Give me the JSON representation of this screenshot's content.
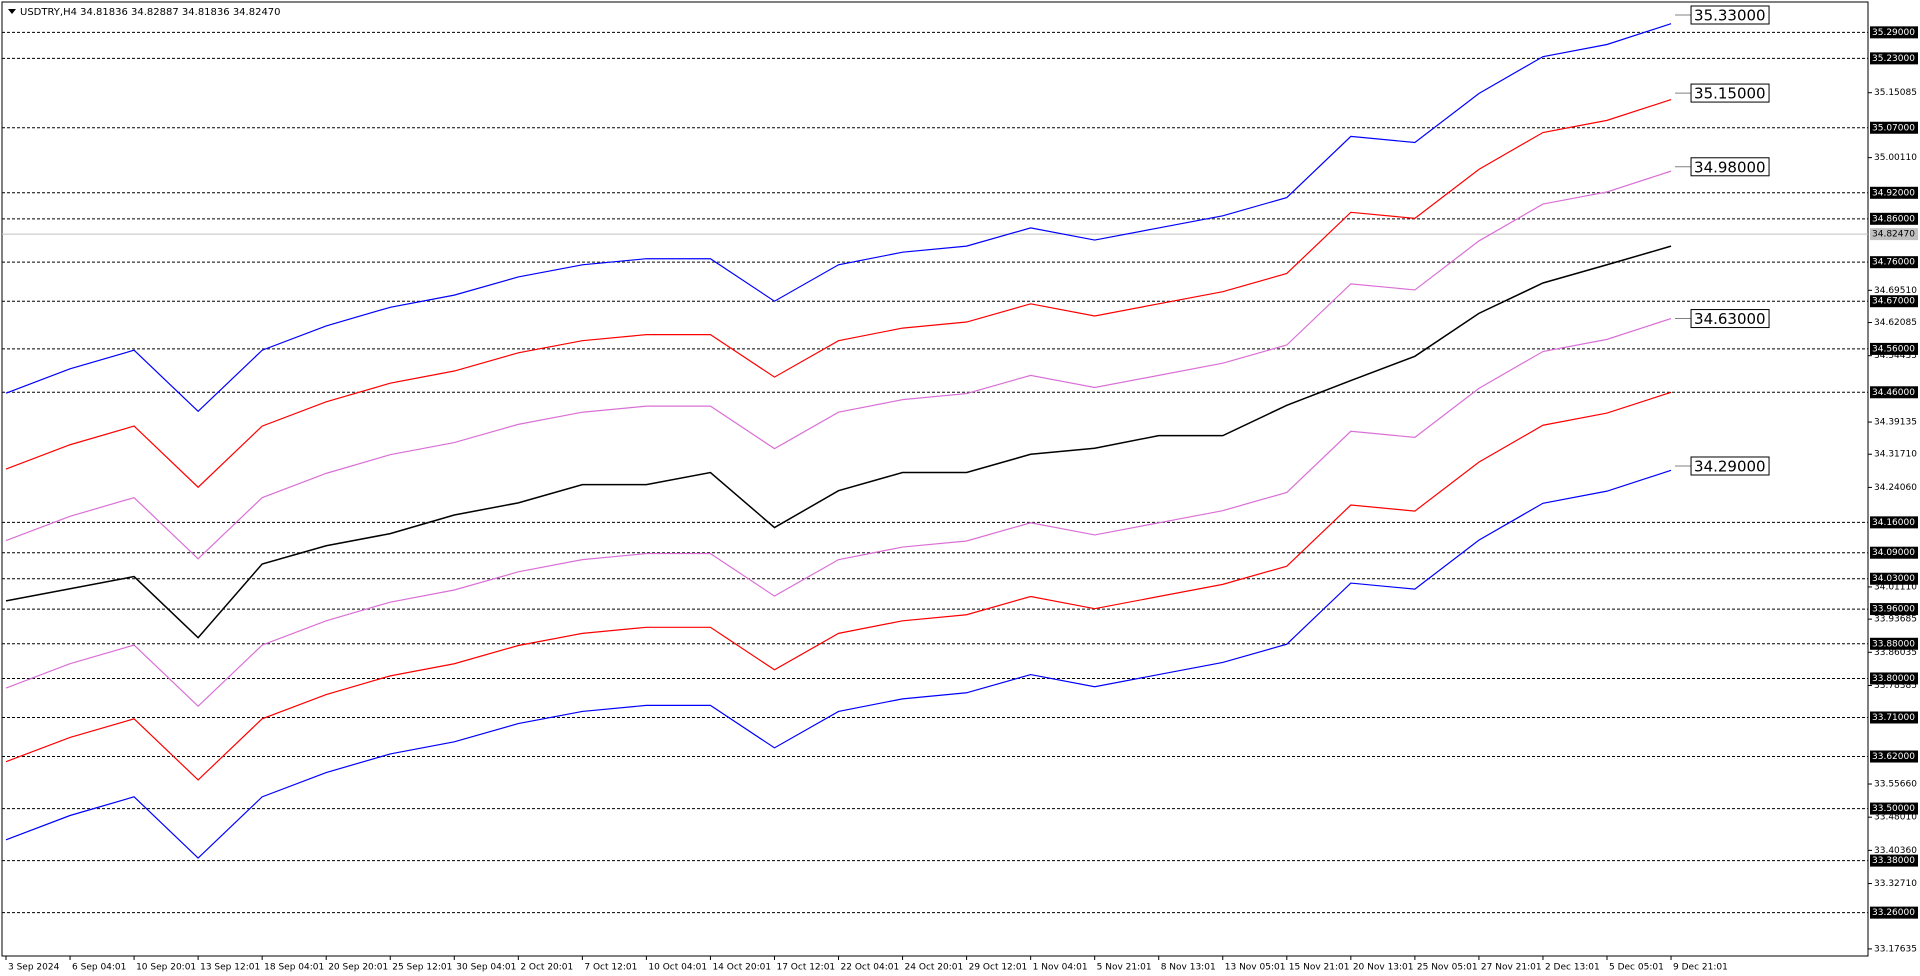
{
  "chart_data": {
    "type": "line",
    "title": "USDTRY,H4  34.81836 34.82887 34.81836 34.82470",
    "x": [
      "3 Sep 2024",
      "6 Sep 04:01",
      "10 Sep 20:01",
      "13 Sep 12:01",
      "18 Sep 04:01",
      "20 Sep 20:01",
      "25 Sep 12:01",
      "30 Sep 04:01",
      "2 Oct 20:01",
      "7 Oct 12:01",
      "10 Oct 04:01",
      "14 Oct 20:01",
      "17 Oct 12:01",
      "22 Oct 04:01",
      "24 Oct 20:01",
      "29 Oct 12:01",
      "1 Nov 04:01",
      "5 Nov 21:01",
      "8 Nov 13:01",
      "13 Nov 05:01",
      "15 Nov 21:01",
      "20 Nov 13:01",
      "25 Nov 05:01",
      "27 Nov 21:01",
      "2 Dec 13:01",
      "5 Dec 05:01",
      "9 Dec 21:01"
    ],
    "series": [
      {
        "color": "#000000",
        "values": [
          33.979,
          34.007,
          34.035,
          33.894,
          34.064,
          34.106,
          34.134,
          34.177,
          34.205,
          34.247,
          34.247,
          34.275,
          34.148,
          34.233,
          34.275,
          34.275,
          34.317,
          34.331,
          34.36,
          34.36,
          34.43,
          34.487,
          34.543,
          34.642,
          34.712,
          34.754,
          34.797
        ]
      },
      {
        "color": "#0000ff",
        "values": [
          34.458,
          34.514,
          34.557,
          34.416,
          34.557,
          34.613,
          34.656,
          34.684,
          34.726,
          34.754,
          34.768,
          34.768,
          34.67,
          34.754,
          34.783,
          34.797,
          34.839,
          34.811,
          34.839,
          34.867,
          34.909,
          35.05,
          35.036,
          35.149,
          35.234,
          35.262,
          35.31
        ]
      },
      {
        "color": "#ff0000",
        "values": [
          34.283,
          34.339,
          34.382,
          34.241,
          34.382,
          34.438,
          34.481,
          34.509,
          34.551,
          34.579,
          34.593,
          34.593,
          34.495,
          34.579,
          34.608,
          34.622,
          34.664,
          34.636,
          34.664,
          34.692,
          34.734,
          34.875,
          34.861,
          34.974,
          35.059,
          35.087,
          35.135
        ]
      },
      {
        "color": "#da70d6",
        "values": [
          34.118,
          34.174,
          34.217,
          34.076,
          34.217,
          34.273,
          34.316,
          34.344,
          34.386,
          34.414,
          34.428,
          34.428,
          34.33,
          34.414,
          34.443,
          34.457,
          34.499,
          34.471,
          34.499,
          34.527,
          34.569,
          34.71,
          34.696,
          34.809,
          34.894,
          34.922,
          34.97
        ]
      },
      {
        "color": "#da70d6",
        "values": [
          33.778,
          33.834,
          33.877,
          33.736,
          33.877,
          33.933,
          33.976,
          34.004,
          34.046,
          34.074,
          34.088,
          34.088,
          33.99,
          34.074,
          34.103,
          34.117,
          34.159,
          34.131,
          34.159,
          34.187,
          34.229,
          34.37,
          34.356,
          34.469,
          34.554,
          34.582,
          34.63
        ]
      },
      {
        "color": "#ff0000",
        "values": [
          33.608,
          33.664,
          33.707,
          33.566,
          33.707,
          33.763,
          33.806,
          33.834,
          33.876,
          33.904,
          33.918,
          33.918,
          33.82,
          33.904,
          33.933,
          33.947,
          33.989,
          33.961,
          33.989,
          34.017,
          34.059,
          34.2,
          34.186,
          34.299,
          34.384,
          34.412,
          34.46
        ]
      },
      {
        "color": "#0000ff",
        "values": [
          33.428,
          33.484,
          33.527,
          33.386,
          33.527,
          33.583,
          33.626,
          33.654,
          33.696,
          33.724,
          33.738,
          33.738,
          33.64,
          33.724,
          33.753,
          33.767,
          33.809,
          33.781,
          33.809,
          33.837,
          33.879,
          34.02,
          34.006,
          34.119,
          34.204,
          34.232,
          34.28
        ]
      }
    ],
    "ylim": [
      33.16,
      35.36
    ],
    "yticks": [
      35.15085,
      {
        "value": 35.0011,
        "label": "35.00110"
      },
      {
        "value": 34.6951,
        "label": "34.69510"
      },
      34.62085,
      34.54435,
      34.39135,
      {
        "value": 34.3171,
        "label": "34.31710"
      },
      {
        "value": 34.2406,
        "label": "34.24060"
      },
      {
        "value": 34.0111,
        "label": "34.01110"
      },
      33.93685,
      33.86035,
      33.78385,
      {
        "value": 33.5566,
        "label": "33.55660"
      },
      {
        "value": 33.4801,
        "label": "33.48010"
      },
      {
        "value": 33.4036,
        "label": "33.40360"
      },
      {
        "value": 33.3271,
        "label": "33.32710"
      },
      33.17635
    ],
    "levels": [
      {
        "value": 35.29,
        "label": "35.29000"
      },
      {
        "value": 35.23,
        "label": "35.23000"
      },
      {
        "value": 35.07,
        "label": "35.07000"
      },
      {
        "value": 34.92,
        "label": "34.92000"
      },
      {
        "value": 34.86,
        "label": "34.86000"
      },
      {
        "value": 34.76,
        "label": "34.76000"
      },
      {
        "value": 34.67,
        "label": "34.67000"
      },
      {
        "value": 34.56,
        "label": "34.56000"
      },
      {
        "value": 34.46,
        "label": "34.46000"
      },
      {
        "value": 34.16,
        "label": "34.16000"
      },
      {
        "value": 34.09,
        "label": "34.09000"
      },
      {
        "value": 34.03,
        "label": "34.03000"
      },
      {
        "value": 33.96,
        "label": "33.96000"
      },
      {
        "value": 33.88,
        "label": "33.88000"
      },
      {
        "value": 33.8,
        "label": "33.80000"
      },
      {
        "value": 33.71,
        "label": "33.71000"
      },
      {
        "value": 33.62,
        "label": "33.62000"
      },
      {
        "value": 33.5,
        "label": "33.50000"
      },
      {
        "value": 33.38,
        "label": "33.38000"
      },
      {
        "value": 33.26,
        "label": "33.26000"
      }
    ],
    "last": {
      "value": 34.8247,
      "label": "34.82470"
    },
    "end_labels": [
      {
        "value": 35.33,
        "label": "35.33000"
      },
      {
        "value": 35.15,
        "label": "35.15000"
      },
      {
        "value": 34.98,
        "label": "34.98000"
      },
      {
        "value": 34.63,
        "label": "34.63000"
      },
      {
        "value": 34.29,
        "label": "34.29000"
      }
    ]
  }
}
